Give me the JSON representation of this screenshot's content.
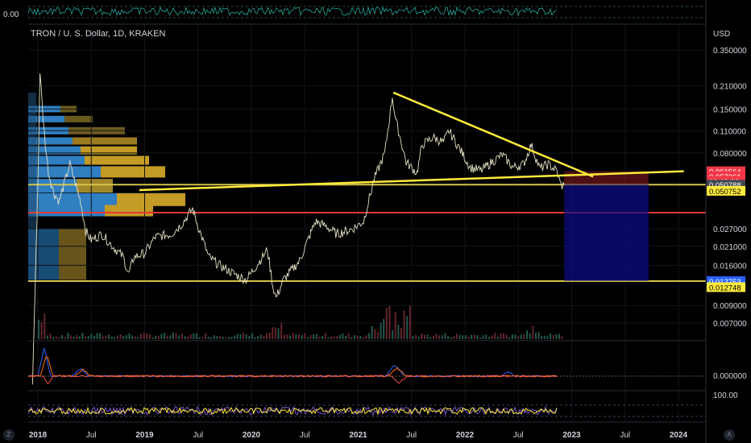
{
  "chart_data": {
    "type": "line",
    "title": "TRON / U. S. Dollar, 1D, KRAKEN",
    "currency_label": "USD",
    "scale": "log",
    "top_indicator_label": "0.00",
    "y_ticks": [
      0.35,
      0.21,
      0.15,
      0.11,
      0.08,
      0.027,
      0.021,
      0.016,
      0.009,
      0.007
    ],
    "y_tick_labels": [
      "0.350000",
      "0.210000",
      "0.150000",
      "0.110000",
      "0.080000",
      "0.027000",
      "0.021000",
      "0.016000",
      "0.009000",
      "0.007000"
    ],
    "x_ticks": [
      {
        "label": "2018",
        "t": 2018.0
      },
      {
        "label": "Jul",
        "t": 2018.5
      },
      {
        "label": "2019",
        "t": 2019.0
      },
      {
        "label": "Jul",
        "t": 2019.5
      },
      {
        "label": "2020",
        "t": 2020.0
      },
      {
        "label": "Jul",
        "t": 2020.5
      },
      {
        "label": "2021",
        "t": 2021.0
      },
      {
        "label": "Jul",
        "t": 2021.5
      },
      {
        "label": "2022",
        "t": 2022.0
      },
      {
        "label": "Jul",
        "t": 2022.5
      },
      {
        "label": "2023",
        "t": 2023.0
      },
      {
        "label": "Jul",
        "t": 2023.5
      },
      {
        "label": "2024",
        "t": 2024.0
      }
    ],
    "price_badges": [
      {
        "text": "0.061564",
        "bg": "#f23645",
        "fg": "#ffffff",
        "price": 0.0616
      },
      {
        "text": "0.057261",
        "bg": "#f23645",
        "fg": "#ffffff",
        "price": 0.0573
      },
      {
        "text": "13:42:22",
        "bg": "#f23645",
        "fg": "#ffffff",
        "price": 0.0535
      },
      {
        "text": "0.050788",
        "bg": "#434651",
        "fg": "#ffffff",
        "price": 0.0508
      },
      {
        "text": "0.050752",
        "bg": "#ffeb3b",
        "fg": "#000000",
        "price": 0.0465
      },
      {
        "text": "0.012753",
        "bg": "#2962ff",
        "fg": "#ffffff",
        "price": 0.01275
      },
      {
        "text": "0.012748",
        "bg": "#ffeb3b",
        "fg": "#000000",
        "price": 0.0117
      }
    ],
    "macd_label": "0.000000",
    "rsi_label": "100.00",
    "price_series": [
      [
        2017.95,
        0.003
      ],
      [
        2018.0,
        0.05
      ],
      [
        2018.02,
        0.26
      ],
      [
        2018.04,
        0.16
      ],
      [
        2018.07,
        0.09
      ],
      [
        2018.1,
        0.06
      ],
      [
        2018.15,
        0.045
      ],
      [
        2018.2,
        0.04
      ],
      [
        2018.3,
        0.068
      ],
      [
        2018.35,
        0.052
      ],
      [
        2018.4,
        0.04
      ],
      [
        2018.45,
        0.026
      ],
      [
        2018.5,
        0.023
      ],
      [
        2018.6,
        0.025
      ],
      [
        2018.7,
        0.021
      ],
      [
        2018.8,
        0.018
      ],
      [
        2018.85,
        0.014
      ],
      [
        2018.9,
        0.018
      ],
      [
        2019.0,
        0.019
      ],
      [
        2019.1,
        0.024
      ],
      [
        2019.25,
        0.025
      ],
      [
        2019.35,
        0.029
      ],
      [
        2019.45,
        0.036
      ],
      [
        2019.5,
        0.028
      ],
      [
        2019.6,
        0.018
      ],
      [
        2019.7,
        0.016
      ],
      [
        2019.85,
        0.014
      ],
      [
        2019.95,
        0.013
      ],
      [
        2020.05,
        0.016
      ],
      [
        2020.15,
        0.02
      ],
      [
        2020.2,
        0.012
      ],
      [
        2020.23,
        0.01
      ],
      [
        2020.3,
        0.013
      ],
      [
        2020.45,
        0.017
      ],
      [
        2020.6,
        0.03
      ],
      [
        2020.7,
        0.028
      ],
      [
        2020.8,
        0.025
      ],
      [
        2020.95,
        0.027
      ],
      [
        2021.05,
        0.03
      ],
      [
        2021.15,
        0.055
      ],
      [
        2021.25,
        0.08
      ],
      [
        2021.32,
        0.18
      ],
      [
        2021.35,
        0.13
      ],
      [
        2021.45,
        0.07
      ],
      [
        2021.55,
        0.06
      ],
      [
        2021.6,
        0.09
      ],
      [
        2021.7,
        0.1
      ],
      [
        2021.8,
        0.093
      ],
      [
        2021.85,
        0.11
      ],
      [
        2021.95,
        0.085
      ],
      [
        2022.05,
        0.065
      ],
      [
        2022.15,
        0.062
      ],
      [
        2022.25,
        0.07
      ],
      [
        2022.35,
        0.078
      ],
      [
        2022.45,
        0.065
      ],
      [
        2022.55,
        0.068
      ],
      [
        2022.62,
        0.09
      ],
      [
        2022.7,
        0.064
      ],
      [
        2022.78,
        0.068
      ],
      [
        2022.86,
        0.062
      ],
      [
        2022.9,
        0.05
      ],
      [
        2022.93,
        0.0508
      ]
    ],
    "annotations": {
      "trendlines": [
        {
          "from": [
            2021.33,
            0.19
          ],
          "to": [
            2023.2,
            0.057
          ]
        },
        {
          "from": [
            2018.95,
            0.047
          ],
          "to": [
            2024.05,
            0.0615
          ]
        }
      ],
      "horizontal_levels": [
        {
          "price": 0.0508,
          "color": "#d4c44a"
        },
        {
          "price": 0.034,
          "color": "#e53935"
        },
        {
          "price": 0.01275,
          "color": "#d4c44a"
        }
      ],
      "position_box": {
        "t_from": 2022.93,
        "t_to": 2023.72,
        "entry": 0.0508,
        "target": 0.0128,
        "stop": 0.0616
      }
    }
  }
}
